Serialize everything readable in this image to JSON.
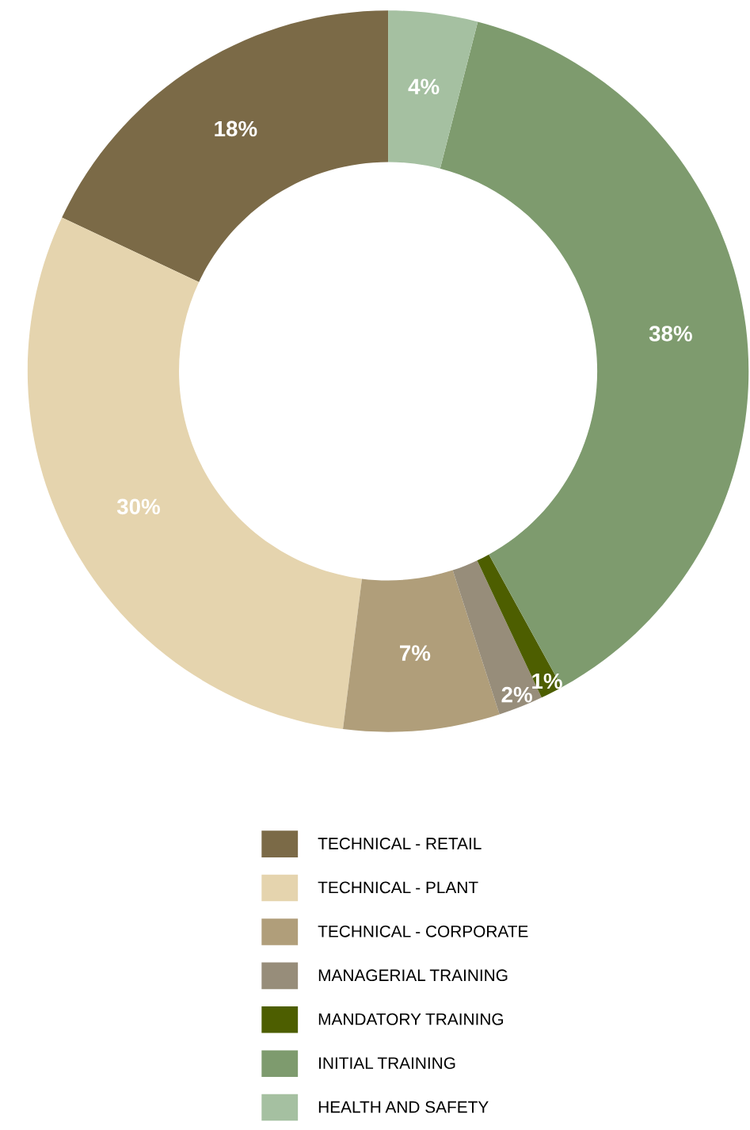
{
  "chart_data": {
    "type": "donut",
    "categories": [
      "TECHNICAL - RETAIL",
      "TECHNICAL - PLANT",
      "TECHNICAL - CORPORATE",
      "MANAGERIAL TRAINING",
      "MANDATORY TRAINING",
      "INITIAL TRAINING",
      "HEALTH AND SAFETY"
    ],
    "values": [
      18,
      30,
      7,
      2,
      1,
      38,
      4
    ],
    "colors": [
      "#7b6a47",
      "#e5d4ae",
      "#b09e7a",
      "#978d7a",
      "#4d5e00",
      "#7e9b6e",
      "#a5c0a1"
    ],
    "value_labels": [
      "18%",
      "30%",
      "7%",
      "2%",
      "1%",
      "38%",
      "4%"
    ],
    "legend": "bottom"
  }
}
